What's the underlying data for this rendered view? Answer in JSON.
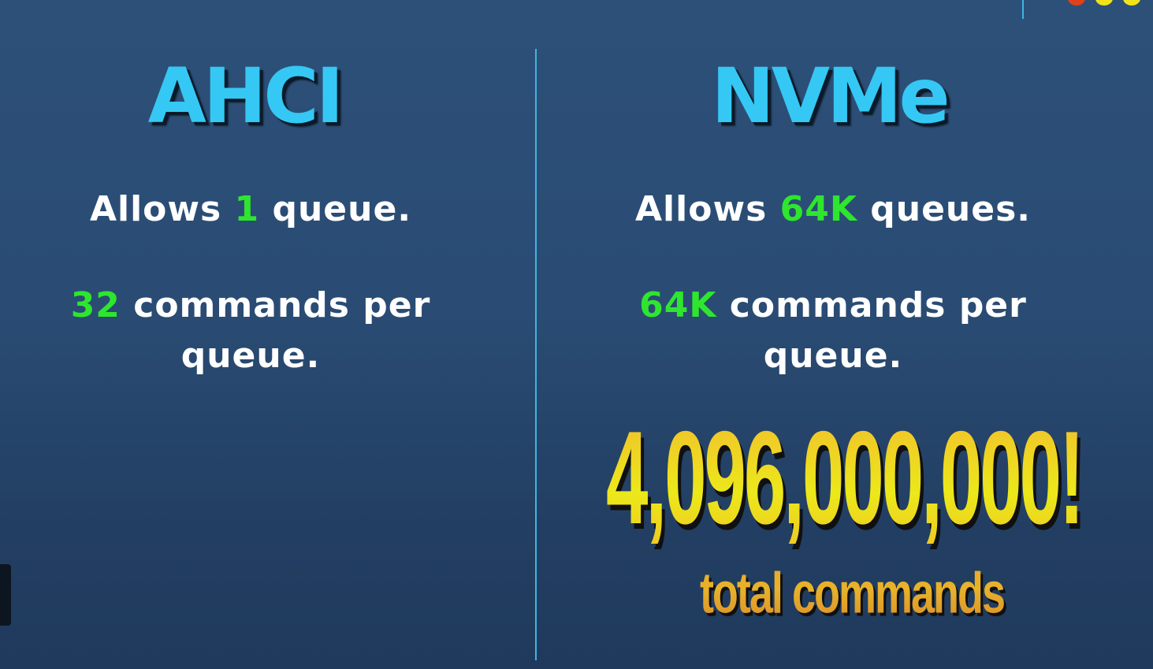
{
  "ahci": {
    "title": "AHCI",
    "queues_prefix": "Allows ",
    "queues_value": "1",
    "queues_suffix": " queue.",
    "commands_value": "32",
    "commands_suffix": " commands per",
    "commands_line2": "queue."
  },
  "nvme": {
    "title": "NVMe",
    "queues_prefix": "Allows ",
    "queues_value": "64K",
    "queues_suffix": " queues.",
    "commands_value": "64K",
    "commands_suffix": " commands per",
    "commands_line2": "queue.",
    "total_number": "4,096,000,000!",
    "total_label": "total commands"
  },
  "colors": {
    "heading": "#35c8f4",
    "highlight": "#2ee62e",
    "text": "#ffffff",
    "divider": "#3fb6e0",
    "dot_red": "#e0401a",
    "dot_yellow": "#f2e21a"
  }
}
